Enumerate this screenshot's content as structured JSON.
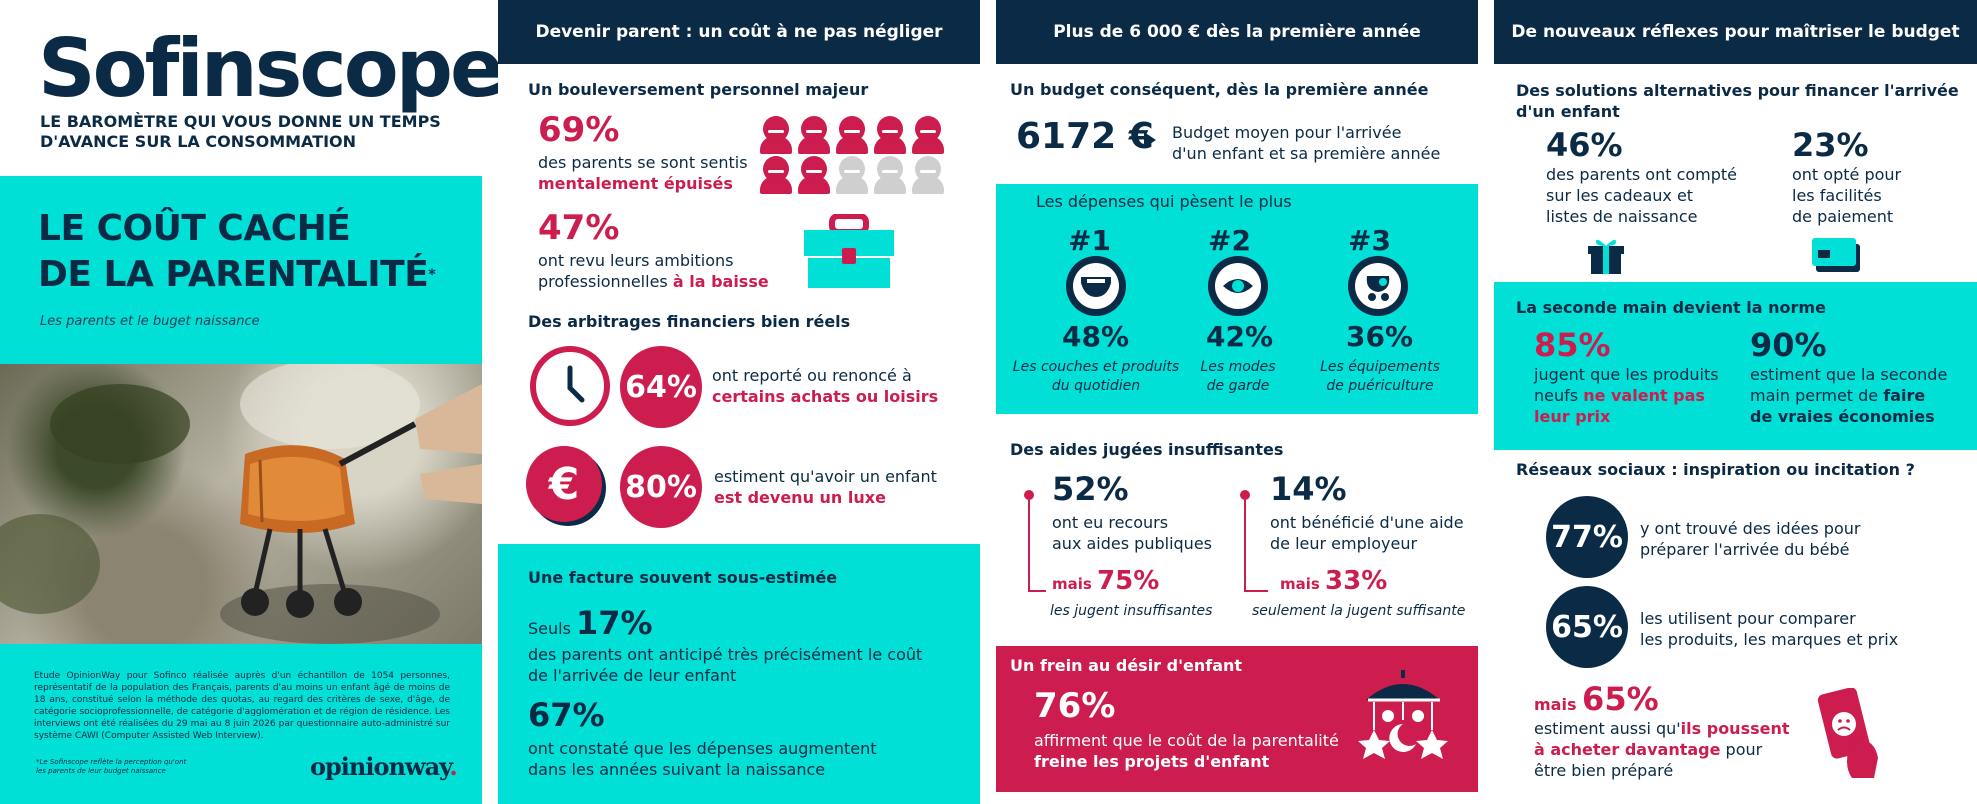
{
  "brand": {
    "logo": "Sofinscope",
    "tagline": "LE BAROMÈTRE QUI VOUS DONNE UN TEMPS D'AVANCE SUR LA CONSOMMATION",
    "title_line1": "LE COÛT CACHÉ",
    "title_line2": "DE LA PARENTALITÉ",
    "title_mark": "*",
    "subtitle": "Les parents et le buget naissance",
    "methodology": "Etude OpinionWay pour Sofinco réalisée auprès d'un échantillon de 1054 personnes, représentatif de la population des Français, parents d'au moins un enfant âgé de moins de 18 ans, constitué selon la méthode des quotas, au regard des critères de sexe, d'âge, de catégorie socioprofessionnelle, de catégorie d'agglomération et de région de résidence. Les interviews ont été réalisées du 29 mai au 8 juin 2026 par questionnaire auto-administré sur système CAWI (Computer Assisted Web Interview).",
    "footnote": "*Le Sofinscope reflète la perception qu'ont les parents de leur budget naissance",
    "partner_logo_main": "opinionway",
    "partner_logo_accent": "."
  },
  "col2": {
    "header": "Devenir parent : un coût à ne pas négliger",
    "s1_title": "Un bouleversement personnel majeur",
    "stat1_pct": "69%",
    "stat1_text": "des parents se sont sentis",
    "stat1_hl": "mentalement épuisés",
    "stat2_pct": "47%",
    "stat2_text1": "ont revu leurs ambitions",
    "stat2_text2": "professionnelles ",
    "stat2_hl": "à la baisse",
    "s2_title": "Des arbitrages financiers bien réels",
    "stat3_pct": "64%",
    "stat3_text": "ont reporté ou renoncé à",
    "stat3_hl": "certains achats ou loisirs",
    "euro_symbol": "€",
    "stat4_pct": "80%",
    "stat4_text": "estiment qu'avoir un enfant",
    "stat4_hl": "est devenu un luxe",
    "s3_title": "Une facture souvent sous-estimée",
    "stat5_prefix": "Seuls ",
    "stat5_pct": "17%",
    "stat5_text1": "des parents ont anticipé très précisément le coût",
    "stat5_text2": "de l'arrivée de leur enfant",
    "stat6_pct": "67%",
    "stat6_text1": "ont constaté que les dépenses augmentent",
    "stat6_text2": "dans les années suivant la naissance"
  },
  "col3": {
    "header": "Plus de 6 000 € dès la première année",
    "s1_title": "Un budget conséquent, dès la première année",
    "budget_value": "6172 €",
    "budget_text1": "Budget moyen pour l'arrivée",
    "budget_text2": "d'un enfant et sa première année",
    "s2_title": "Les dépenses qui pèsent le plus",
    "ranks": [
      {
        "rank": "#1",
        "pct": "48%",
        "line1": "Les couches et produits",
        "line2": "du quotidien",
        "icon": "diaper-icon"
      },
      {
        "rank": "#2",
        "pct": "42%",
        "line1": "Les modes",
        "line2": "de garde",
        "icon": "eye-icon"
      },
      {
        "rank": "#3",
        "pct": "36%",
        "line1": "Les équipements",
        "line2": "de puériculture",
        "icon": "stroller-icon"
      }
    ],
    "s3_title": "Des aides jugées insuffisantes",
    "aid1_pct": "52%",
    "aid1_text1": "ont eu recours",
    "aid1_text2": "aux aides publiques",
    "aid1_mais": "mais ",
    "aid1_sub_pct": "75%",
    "aid1_sub_text": "les jugent insuffisantes",
    "aid2_pct": "14%",
    "aid2_text1": "ont bénéficié d'une aide",
    "aid2_text2": "de leur employeur",
    "aid2_mais": "mais ",
    "aid2_sub_pct": "33%",
    "aid2_sub_text": "seulement la jugent suffisante",
    "s4_title": "Un frein au désir d'enfant",
    "stat_pct": "76%",
    "stat_text1": "affirment que le coût de la parentalité",
    "stat_hl": "freine les projets d'enfant"
  },
  "col4": {
    "header": "De nouveaux réflexes pour maîtriser le budget",
    "s1_title1": "Des solutions alternatives pour financer l'arrivée",
    "s1_title2": "d'un enfant",
    "alt1_pct": "46%",
    "alt1_text1": "des parents ont compté",
    "alt1_text2": "sur les cadeaux et",
    "alt1_text3": "listes de naissance",
    "alt2_pct": "23%",
    "alt2_text1": "ont opté pour",
    "alt2_text2": "les facilités",
    "alt2_text3": "de paiement",
    "s2_title": "La seconde main devient la norme",
    "sh1_pct": "85%",
    "sh1_text1": "jugent que les produits",
    "sh1_text2": "neufs ",
    "sh1_hl1": "ne valent pas",
    "sh1_hl2": "leur prix",
    "sh2_pct": "90%",
    "sh2_text1": "estiment que la seconde",
    "sh2_text2": "main permet de ",
    "sh2_hl1": "faire",
    "sh2_hl2": "de vraies économies",
    "s3_title": "Réseaux sociaux : inspiration ou incitation ?",
    "soc1_pct": "77%",
    "soc1_text1": "y ont trouvé des idées pour",
    "soc1_text2": "préparer l'arrivée du bébé",
    "soc2_pct": "65%",
    "soc2_text1": "les utilisent pour comparer",
    "soc2_text2": "les produits, les marques et prix",
    "soc3_mais": "mais ",
    "soc3_pct": "65%",
    "soc3_text1": "estiment aussi qu'",
    "soc3_hl1": "ils poussent",
    "soc3_hl2": "à acheter davantage",
    "soc3_text2": " pour",
    "soc3_text3": "être bien préparé"
  },
  "colors": {
    "navy": "#0b2a45",
    "cyan": "#00e0d6",
    "pink": "#cc1d4e",
    "grey": "#cfcfcf"
  },
  "icons": [
    "person-icon",
    "briefcase-icon",
    "clock-icon",
    "euro-icon",
    "play-triangle-icon",
    "gift-icon",
    "card-icon",
    "phone-sad-icon",
    "mobile-toy-icon"
  ],
  "people_chart": {
    "total": 10,
    "highlighted": 7
  }
}
